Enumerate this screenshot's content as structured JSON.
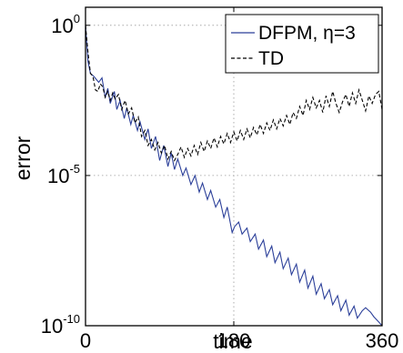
{
  "chart_data": {
    "type": "line",
    "xlabel": "time",
    "ylabel": "error",
    "x_ticks": [
      "0",
      "180",
      "360"
    ],
    "y_ticks": [
      {
        "base": "10",
        "exp": "0"
      },
      {
        "base": "10",
        "exp": "-5"
      },
      {
        "base": "10",
        "exp": "-10"
      }
    ],
    "xlim": [
      0,
      360
    ],
    "ylim": [
      -10,
      0.6
    ],
    "y_scale": "log10",
    "grid": true,
    "legend_position": "top-right",
    "series": [
      {
        "name": "DFPM, η=3",
        "color": "#2b3f99",
        "dash": "solid",
        "x": [
          0,
          3,
          6,
          10,
          16,
          20,
          24,
          27,
          30,
          35,
          38,
          42,
          47,
          50,
          55,
          58,
          63,
          66,
          72,
          76,
          80,
          85,
          90,
          95,
          100,
          104,
          108,
          112,
          118,
          122,
          128,
          133,
          138,
          142,
          148,
          152,
          158,
          163,
          168,
          172,
          178,
          181,
          186,
          190,
          196,
          200,
          206,
          210,
          216,
          220,
          226,
          230,
          236,
          240,
          246,
          250,
          256,
          260,
          266,
          270,
          276,
          280,
          286,
          290,
          296,
          300,
          306,
          310,
          316,
          320,
          326,
          330,
          336,
          340,
          346,
          350,
          355,
          360
        ],
        "y": [
          0,
          -1.2,
          -1.6,
          -1.7,
          -1.9,
          -1.75,
          -2.4,
          -2.1,
          -2.6,
          -2.2,
          -2.8,
          -2.5,
          -3.1,
          -2.75,
          -3.3,
          -3.0,
          -3.5,
          -3.2,
          -3.8,
          -3.45,
          -4.1,
          -3.7,
          -4.5,
          -4.0,
          -4.7,
          -4.25,
          -4.8,
          -4.45,
          -5.0,
          -4.75,
          -5.3,
          -5.0,
          -5.55,
          -5.25,
          -5.8,
          -5.5,
          -6.05,
          -5.8,
          -6.4,
          -6.05,
          -6.9,
          -6.7,
          -6.55,
          -6.95,
          -6.75,
          -7.2,
          -6.95,
          -7.45,
          -7.15,
          -7.7,
          -7.35,
          -7.9,
          -7.55,
          -8.1,
          -7.75,
          -8.3,
          -7.95,
          -8.55,
          -8.15,
          -8.75,
          -8.35,
          -8.95,
          -8.6,
          -9.1,
          -8.8,
          -9.3,
          -9.0,
          -9.5,
          -9.15,
          -9.65,
          -9.35,
          -9.75,
          -9.5,
          -9.4,
          -9.55,
          -9.7,
          -9.85,
          -10.0
        ]
      },
      {
        "name": "TD",
        "color": "#000000",
        "dash": "dashed",
        "x": [
          0,
          3,
          6,
          9,
          12,
          15,
          18,
          21,
          24,
          27,
          30,
          33,
          36,
          40,
          44,
          48,
          52,
          56,
          60,
          64,
          68,
          72,
          76,
          80,
          84,
          88,
          92,
          96,
          100,
          104,
          108,
          112,
          116,
          120,
          124,
          128,
          132,
          136,
          140,
          144,
          148,
          152,
          156,
          160,
          164,
          168,
          172,
          176,
          180,
          184,
          188,
          192,
          196,
          200,
          204,
          208,
          212,
          216,
          220,
          224,
          228,
          232,
          236,
          240,
          244,
          248,
          252,
          256,
          260,
          264,
          268,
          272,
          276,
          280,
          284,
          288,
          292,
          296,
          300,
          304,
          308,
          312,
          316,
          320,
          324,
          328,
          332,
          336,
          340,
          344,
          348,
          352,
          356,
          360
        ],
        "y": [
          0,
          -0.9,
          -1.6,
          -1.7,
          -2.15,
          -2.2,
          -1.95,
          -2.05,
          -2.4,
          -2.2,
          -2.5,
          -2.25,
          -2.45,
          -2.3,
          -2.8,
          -2.5,
          -2.95,
          -2.75,
          -3.25,
          -3.05,
          -3.7,
          -3.5,
          -4.0,
          -3.8,
          -4.15,
          -3.9,
          -4.25,
          -4.0,
          -4.45,
          -4.2,
          -4.5,
          -4.3,
          -4.05,
          -4.4,
          -4.1,
          -4.35,
          -4.0,
          -4.3,
          -3.9,
          -4.2,
          -3.85,
          -4.1,
          -3.75,
          -4.05,
          -3.7,
          -3.95,
          -3.6,
          -3.9,
          -3.55,
          -3.85,
          -3.5,
          -3.8,
          -3.45,
          -3.75,
          -3.4,
          -3.65,
          -3.3,
          -3.6,
          -3.25,
          -3.5,
          -3.15,
          -3.45,
          -3.1,
          -3.35,
          -3.0,
          -3.3,
          -2.9,
          -3.1,
          -2.7,
          -3.0,
          -2.5,
          -2.8,
          -2.4,
          -2.75,
          -2.5,
          -2.9,
          -2.35,
          -2.7,
          -2.2,
          -2.6,
          -2.9,
          -2.55,
          -2.3,
          -2.7,
          -2.25,
          -2.6,
          -2.15,
          -2.5,
          -2.85,
          -2.35,
          -2.6,
          -2.3,
          -2.2,
          -2.8
        ]
      }
    ]
  }
}
